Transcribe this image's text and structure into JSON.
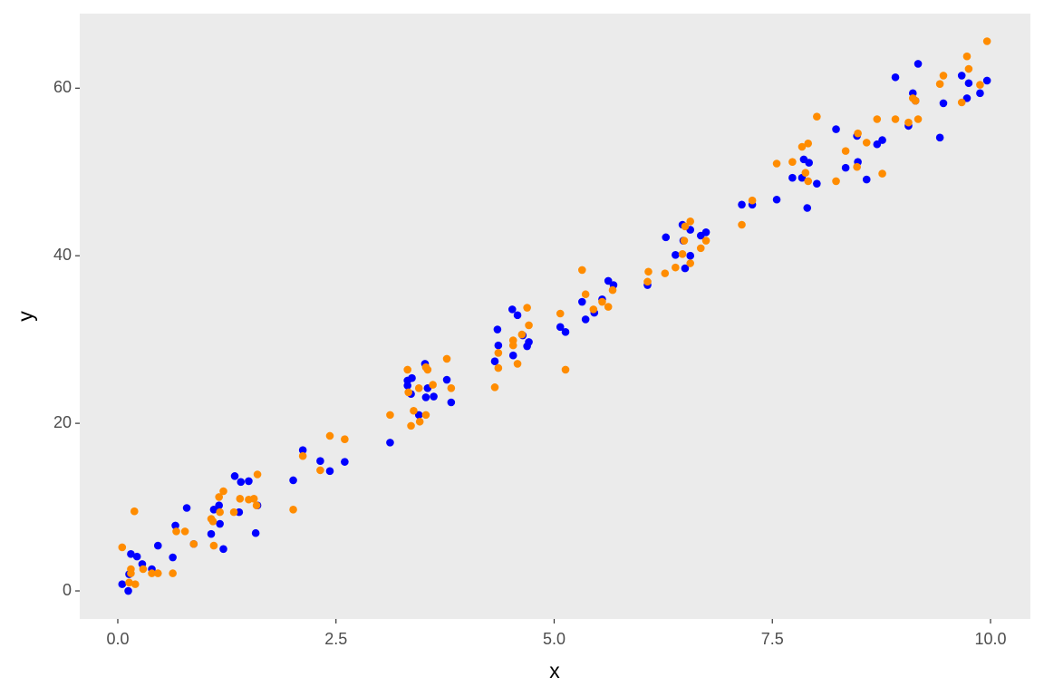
{
  "chart_data": {
    "type": "scatter",
    "x_label": "x",
    "y_label": "y",
    "xlim": [
      -0.436,
      10.457
    ],
    "ylim": [
      -3.35,
      68.9
    ],
    "xticks": [
      {
        "value": 0,
        "label": "0.0"
      },
      2.5,
      {
        "value": 5,
        "label": "5.0"
      },
      7.5,
      {
        "value": 10,
        "label": "10.0"
      }
    ],
    "yticks": [
      0,
      20,
      40,
      60
    ],
    "grid": false,
    "background": "#ebebeb",
    "series": [
      {
        "color": "#0000ff",
        "x": [
          0.05,
          0.12,
          0.13,
          0.15,
          0.22,
          0.28,
          0.39,
          0.46,
          0.63,
          0.66,
          0.79,
          0.87,
          1.07,
          1.1,
          1.16,
          1.17,
          1.21,
          1.34,
          1.41,
          1.39,
          1.5,
          1.58,
          1.6,
          2.01,
          2.12,
          2.32,
          2.43,
          2.6,
          3.12,
          3.32,
          3.32,
          3.37,
          3.36,
          3.45,
          3.52,
          3.53,
          3.55,
          3.62,
          3.77,
          3.82,
          4.32,
          4.35,
          4.36,
          4.52,
          4.53,
          4.58,
          4.64,
          4.69,
          4.71,
          5.07,
          5.13,
          5.32,
          5.36,
          5.46,
          5.55,
          5.62,
          5.68,
          6.07,
          6.28,
          6.39,
          6.47,
          6.48,
          6.5,
          6.56,
          6.56,
          6.68,
          6.74,
          7.15,
          7.27,
          7.55,
          7.73,
          7.84,
          7.86,
          7.92,
          7.9,
          8.01,
          8.23,
          8.34,
          8.47,
          8.48,
          8.58,
          8.7,
          8.76,
          8.91,
          9.06,
          9.11,
          9.14,
          9.17,
          9.42,
          9.46,
          9.67,
          9.73,
          9.75,
          9.88,
          9.96
        ],
        "values": [
          0.8,
          0.0,
          2.0,
          4.4,
          4.1,
          3.2,
          2.6,
          5.4,
          4.0,
          7.8,
          9.9,
          5.6,
          6.8,
          9.7,
          10.2,
          8.0,
          5.0,
          13.7,
          13.0,
          9.4,
          13.1,
          6.9,
          10.2,
          13.2,
          16.8,
          15.5,
          14.3,
          15.4,
          17.7,
          25.1,
          24.5,
          25.4,
          23.5,
          21.0,
          27.1,
          23.1,
          24.2,
          23.2,
          25.2,
          22.5,
          27.4,
          31.2,
          29.3,
          33.6,
          28.1,
          32.9,
          30.5,
          29.2,
          29.7,
          31.5,
          30.9,
          34.5,
          32.4,
          33.2,
          34.8,
          37.0,
          36.5,
          36.5,
          42.2,
          40.1,
          43.7,
          41.8,
          38.5,
          43.1,
          40.0,
          42.4,
          42.8,
          46.1,
          46.1,
          46.7,
          49.3,
          49.3,
          51.5,
          51.1,
          45.7,
          48.6,
          55.1,
          50.5,
          54.3,
          51.2,
          49.1,
          53.3,
          53.8,
          61.3,
          55.5,
          59.4,
          58.5,
          62.9,
          54.1,
          58.2,
          61.5,
          58.8,
          60.6,
          59.4,
          60.9
        ]
      },
      {
        "color": "#ff8c00",
        "x": [
          0.05,
          0.13,
          0.15,
          0.15,
          0.19,
          0.2,
          0.29,
          0.39,
          0.46,
          0.63,
          0.67,
          0.77,
          0.87,
          1.07,
          1.09,
          1.1,
          1.16,
          1.17,
          1.21,
          1.33,
          1.4,
          1.5,
          1.56,
          1.59,
          1.6,
          2.01,
          2.12,
          2.32,
          2.43,
          2.6,
          3.12,
          3.32,
          3.33,
          3.36,
          3.39,
          3.45,
          3.46,
          3.53,
          3.53,
          3.55,
          3.61,
          3.77,
          3.82,
          4.32,
          4.36,
          4.36,
          4.53,
          4.53,
          4.58,
          4.63,
          4.69,
          4.71,
          5.07,
          5.13,
          5.32,
          5.36,
          5.45,
          5.55,
          5.62,
          5.67,
          6.07,
          6.08,
          6.27,
          6.39,
          6.47,
          6.49,
          6.5,
          6.56,
          6.56,
          6.68,
          6.74,
          7.15,
          7.27,
          7.55,
          7.73,
          7.84,
          7.88,
          7.91,
          7.91,
          8.01,
          8.23,
          8.34,
          8.47,
          8.48,
          8.58,
          8.7,
          8.76,
          8.91,
          9.06,
          9.11,
          9.14,
          9.17,
          9.42,
          9.46,
          9.67,
          9.73,
          9.75,
          9.88,
          9.96
        ],
        "values": [
          5.2,
          1.0,
          2.6,
          2.1,
          9.5,
          0.8,
          2.6,
          2.1,
          2.1,
          2.1,
          7.1,
          7.1,
          5.6,
          8.6,
          8.3,
          5.4,
          11.2,
          9.4,
          11.9,
          9.4,
          11.0,
          10.9,
          11.0,
          10.2,
          13.9,
          9.7,
          16.1,
          14.4,
          18.5,
          18.1,
          21.0,
          26.4,
          23.7,
          19.7,
          21.5,
          24.2,
          20.2,
          21.0,
          26.7,
          26.4,
          24.6,
          27.7,
          24.2,
          24.3,
          26.6,
          28.4,
          29.9,
          29.3,
          27.1,
          30.6,
          33.8,
          31.7,
          33.1,
          26.4,
          38.3,
          35.4,
          33.6,
          34.5,
          33.9,
          35.9,
          36.9,
          38.1,
          37.9,
          38.6,
          40.2,
          41.8,
          43.5,
          44.1,
          39.1,
          40.9,
          41.8,
          43.7,
          46.6,
          51.0,
          51.2,
          53.0,
          49.9,
          53.4,
          48.9,
          56.6,
          48.9,
          52.5,
          50.6,
          54.6,
          53.5,
          56.3,
          49.8,
          56.3,
          55.9,
          58.8,
          58.5,
          56.3,
          60.5,
          61.5,
          58.3,
          63.8,
          62.3,
          60.4,
          65.6
        ]
      }
    ]
  }
}
